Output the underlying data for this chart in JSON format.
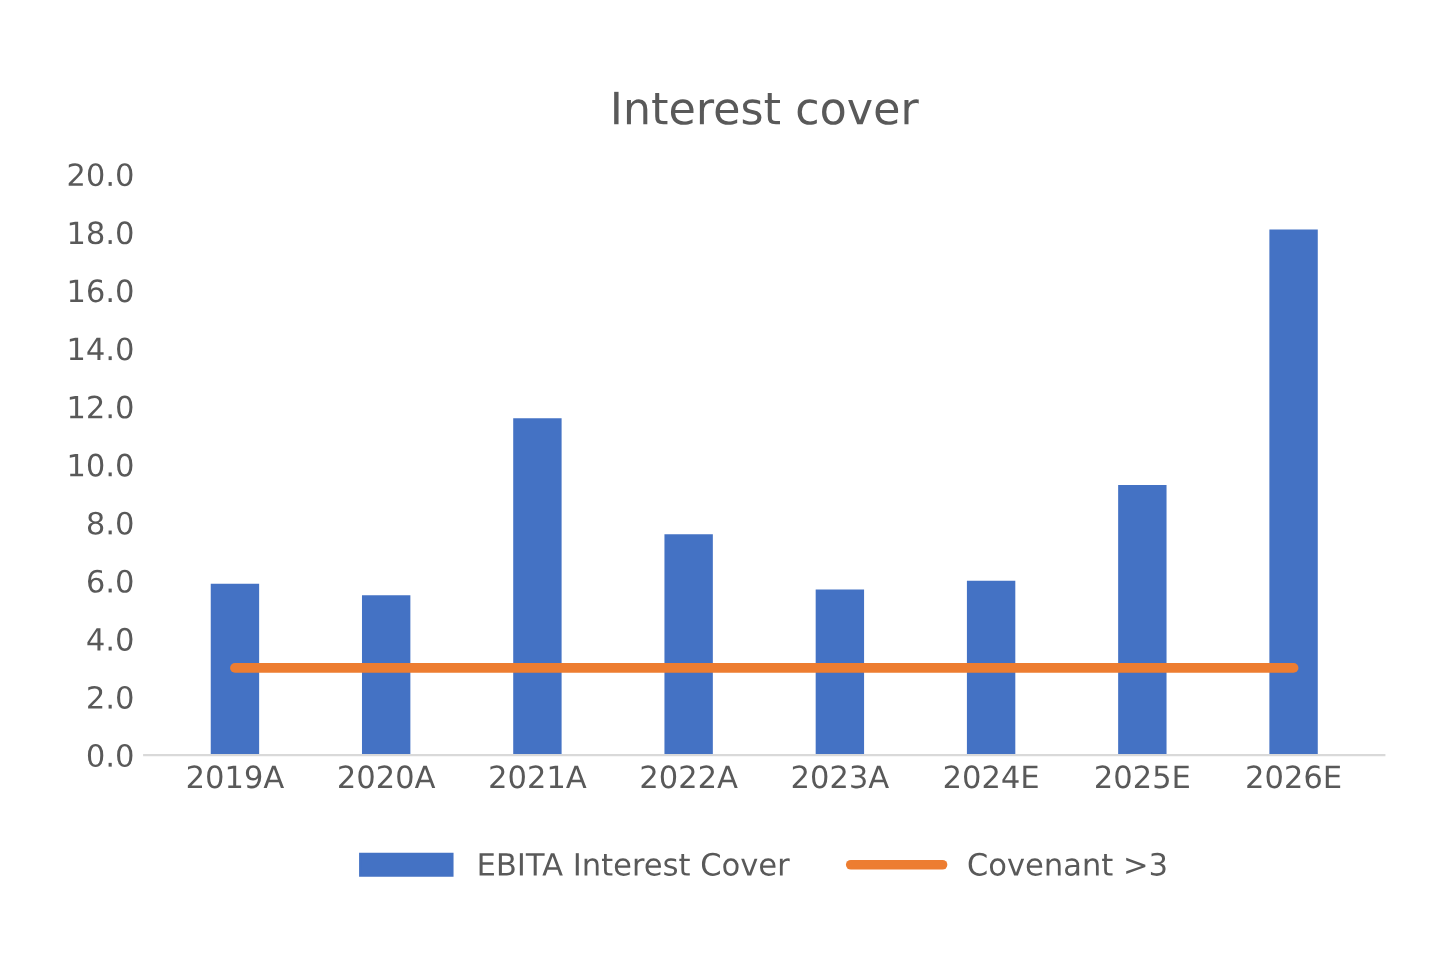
{
  "chart_data": {
    "type": "bar",
    "title": "Interest cover",
    "categories": [
      "2019A",
      "2020A",
      "2021A",
      "2022A",
      "2023A",
      "2024E",
      "2025E",
      "2026E"
    ],
    "series": [
      {
        "name": "EBITA Interest Cover",
        "color": "#4472c4",
        "values": [
          5.9,
          5.5,
          11.6,
          7.6,
          5.7,
          6.0,
          9.3,
          18.1
        ]
      },
      {
        "name": "Covenant >3",
        "type": "line",
        "color": "#ed7d31",
        "values": [
          3,
          3,
          3,
          3,
          3,
          3,
          3,
          3
        ]
      }
    ],
    "ylim": [
      0,
      20
    ],
    "yticks": [
      {
        "value": 0,
        "label": "0.0"
      },
      {
        "value": 2,
        "label": "2.0"
      },
      {
        "value": 4,
        "label": "4.0"
      },
      {
        "value": 6,
        "label": "6.0"
      },
      {
        "value": 8,
        "label": "8.0"
      },
      {
        "value": 10,
        "label": "10.0"
      },
      {
        "value": 12,
        "label": "12.0"
      },
      {
        "value": 14,
        "label": "14.0"
      },
      {
        "value": 16,
        "label": "16.0"
      },
      {
        "value": 18,
        "label": "18.0"
      },
      {
        "value": 20,
        "label": "20.0"
      }
    ],
    "grid": false,
    "legend": "bottom",
    "marker": "none",
    "line_style": "solid"
  }
}
